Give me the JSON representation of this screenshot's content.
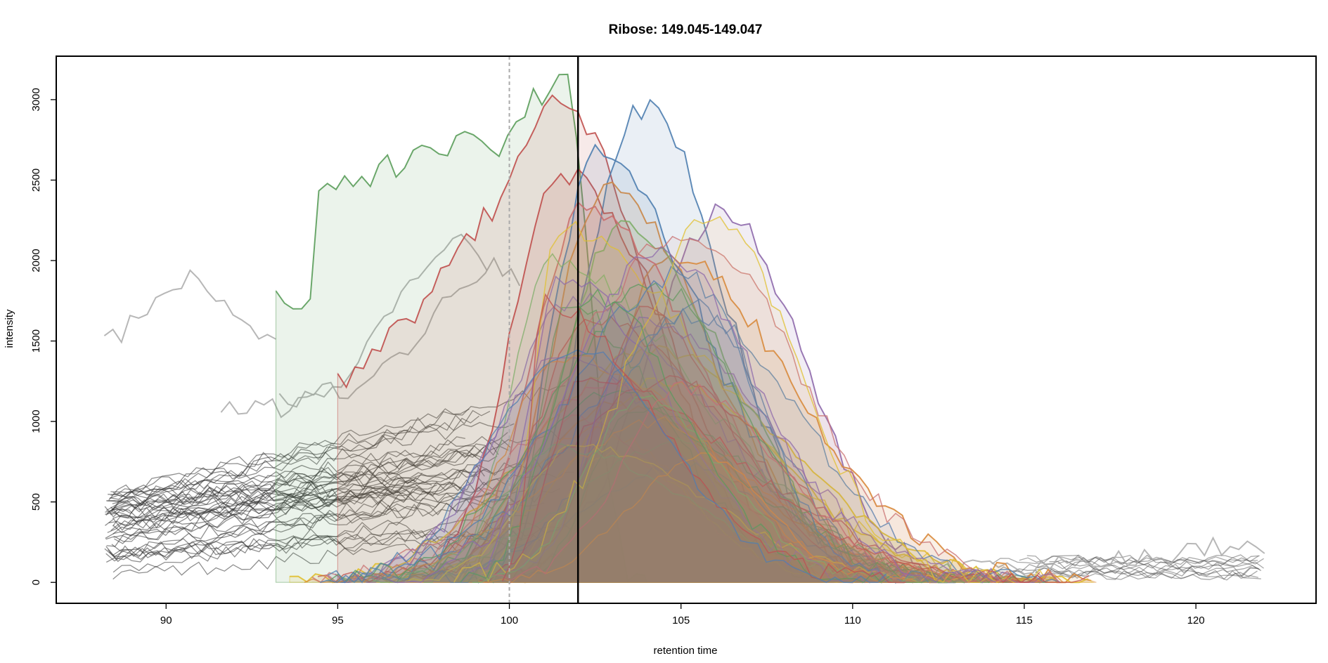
{
  "chart_data": {
    "type": "line",
    "title": "Ribose: 149.045-149.047",
    "xlabel": "retention time",
    "ylabel": "intensity",
    "xlim": [
      86.8,
      123.5
    ],
    "ylim": [
      -130,
      3270
    ],
    "x_ticks": [
      90,
      95,
      100,
      105,
      110,
      115,
      120
    ],
    "y_ticks": [
      0,
      500,
      1000,
      1500,
      2000,
      2500,
      3000
    ],
    "grid": false,
    "legend": "none",
    "reference_lines": [
      {
        "x": 100.0,
        "style": "dashed",
        "color": "#aaaaaa"
      },
      {
        "x": 102.0,
        "style": "solid",
        "color": "#000000"
      }
    ],
    "palette": [
      "#5a9e5a",
      "#c0504d",
      "#4f7fb0",
      "#8e6aab",
      "#d98a3c",
      "#e0c030",
      "#7fae6a",
      "#c97070"
    ],
    "series": [
      {
        "kind": "background",
        "color": "#aaaaaa",
        "x_range": [
          88.2,
          93.3
        ],
        "peak_x": 90.6,
        "peak": 1900,
        "base": 1400
      },
      {
        "kind": "background",
        "color": "#aaaaaa",
        "x_range": [
          91.6,
          99.5
        ],
        "peak_x": 98.5,
        "peak": 2100,
        "base": 1050
      },
      {
        "kind": "background",
        "color": "#aaaaaa",
        "x_range": [
          93.3,
          100.5
        ],
        "peak_x": 99.5,
        "peak": 1950,
        "base": 1150
      },
      {
        "kind": "background",
        "color": "#aaaaaa",
        "x_range": [
          112.0,
          122.0
        ],
        "peak_x": 121.5,
        "peak": 230,
        "base": 80
      },
      {
        "kind": "peak",
        "color": "#5a9e5a",
        "x_range": [
          93.2,
          104.0
        ],
        "peak_x": 101.6,
        "peak": 3150,
        "start": 1720,
        "shoulder": 2450
      },
      {
        "kind": "peak",
        "color": "#c0504d",
        "x_range": [
          95.0,
          110.5
        ],
        "peak_x": 101.4,
        "peak": 3000,
        "start": 1280
      },
      {
        "kind": "peak",
        "color": "#4f7fb0",
        "x_range": [
          98.6,
          112.0
        ],
        "peak_x": 103.9,
        "peak": 2950
      },
      {
        "kind": "peak",
        "color": "#8e6aab",
        "x_range": [
          99.5,
          114.2
        ],
        "peak_x": 106.2,
        "peak": 2300
      },
      {
        "kind": "peak",
        "color": "#d98a3c",
        "x_range": [
          100.2,
          117.1
        ],
        "peak_x": 104.5,
        "peak": 2050
      },
      {
        "kind": "peak",
        "color": "#e0c030",
        "x_range": [
          93.6,
          117.0
        ],
        "peak_x": 104.2,
        "peak": 1450
      },
      {
        "kind": "peak",
        "color": "#c0504d",
        "x_range": [
          97.0,
          112.0
        ],
        "peak_x": 101.5,
        "peak": 2550
      },
      {
        "kind": "peak",
        "color": "#d98a3c",
        "x_range": [
          98.0,
          113.0
        ],
        "peak_x": 102.8,
        "peak": 2450
      },
      {
        "kind": "peak",
        "color": "#4f7fb0",
        "x_range": [
          98.5,
          113.0
        ],
        "peak_x": 102.6,
        "peak": 2650
      },
      {
        "kind": "peak",
        "color": "#7fae6a",
        "x_range": [
          98.0,
          114.0
        ],
        "peak_x": 103.2,
        "peak": 2200
      },
      {
        "kind": "peak",
        "color": "#c97070",
        "x_range": [
          97.5,
          113.5
        ],
        "peak_x": 102.2,
        "peak": 2350
      },
      {
        "kind": "peak",
        "color": "#e0c030",
        "x_range": [
          96.0,
          116.0
        ],
        "peak_x": 104.5,
        "peak": 1250
      },
      {
        "kind": "peak",
        "color": "#d98a3c",
        "x_range": [
          96.5,
          115.5
        ],
        "peak_x": 103.0,
        "peak": 1100
      }
    ]
  }
}
